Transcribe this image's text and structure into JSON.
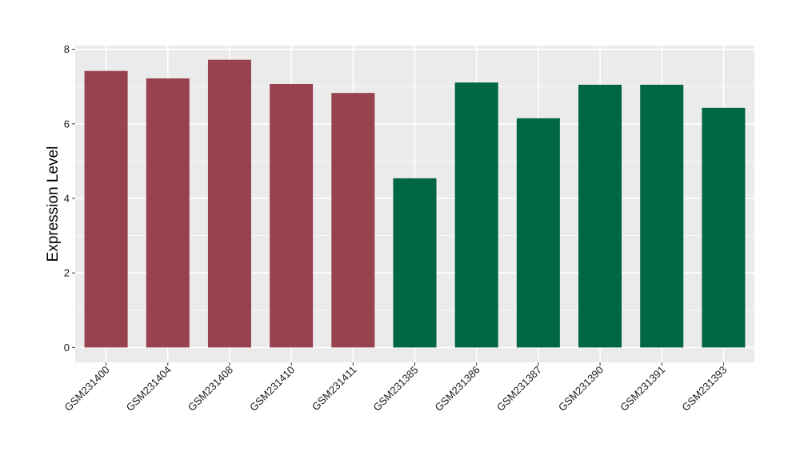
{
  "chart_data": {
    "type": "bar",
    "ylabel": "Expression Level",
    "xlabel": "",
    "ylim": [
      -0.4,
      8.1
    ],
    "yticks": [
      0,
      2,
      4,
      6,
      8
    ],
    "grid": true,
    "categories": [
      "GSM231400",
      "GSM231404",
      "GSM231408",
      "GSM231410",
      "GSM231411",
      "GSM231385",
      "GSM231386",
      "GSM231387",
      "GSM231390",
      "GSM231391",
      "GSM231393"
    ],
    "values": [
      7.42,
      7.22,
      7.72,
      7.07,
      6.83,
      4.54,
      7.11,
      6.15,
      7.05,
      7.05,
      6.43
    ],
    "bar_colors": [
      "#99424f",
      "#99424f",
      "#99424f",
      "#99424f",
      "#99424f",
      "#006743",
      "#006743",
      "#006743",
      "#006743",
      "#006743",
      "#006743"
    ],
    "panel_background": "#ebebeb",
    "gridline_color": "#ffffff"
  }
}
